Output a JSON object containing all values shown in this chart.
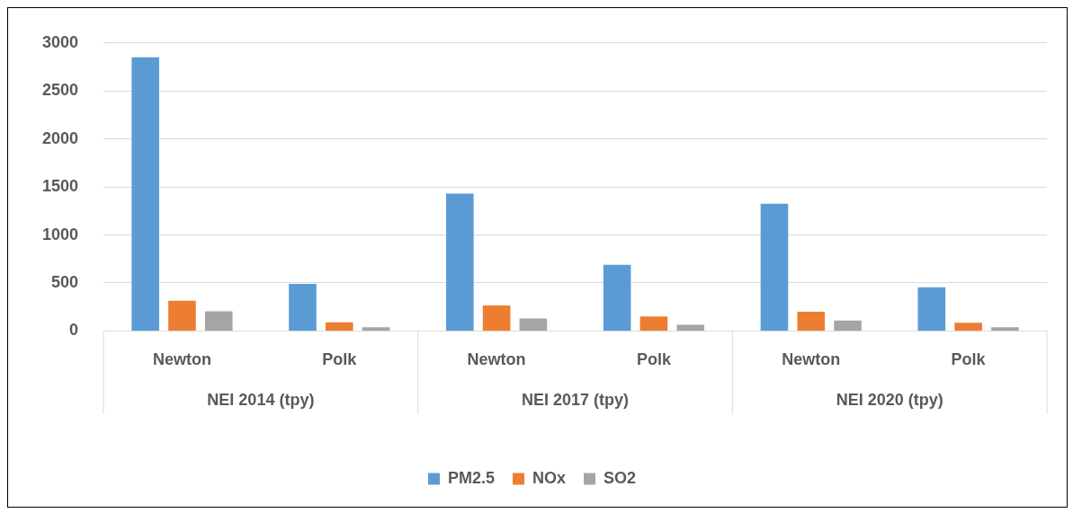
{
  "chart_data": {
    "type": "bar",
    "categories": [
      "Newton",
      "Polk",
      "Newton",
      "Polk",
      "Newton",
      "Polk"
    ],
    "series": [
      {
        "name": "PM2.5",
        "color": "#5b9bd5",
        "values": [
          2850,
          490,
          1430,
          690,
          1325,
          455
        ]
      },
      {
        "name": "NOx",
        "color": "#ed7d31",
        "values": [
          315,
          90,
          265,
          150,
          200,
          85
        ]
      },
      {
        "name": "SO2",
        "color": "#a5a5a5",
        "values": [
          205,
          40,
          130,
          65,
          110,
          40
        ]
      }
    ],
    "annotations": [
      "NEI 2014 (tpy)",
      "NEI 2017 (tpy)",
      "NEI 2020 (tpy)"
    ],
    "ylim": [
      0,
      3000
    ],
    "yticks": [
      0,
      500,
      1000,
      1500,
      2000,
      2500,
      3000
    ],
    "grid": "y",
    "legend": "bottom"
  }
}
